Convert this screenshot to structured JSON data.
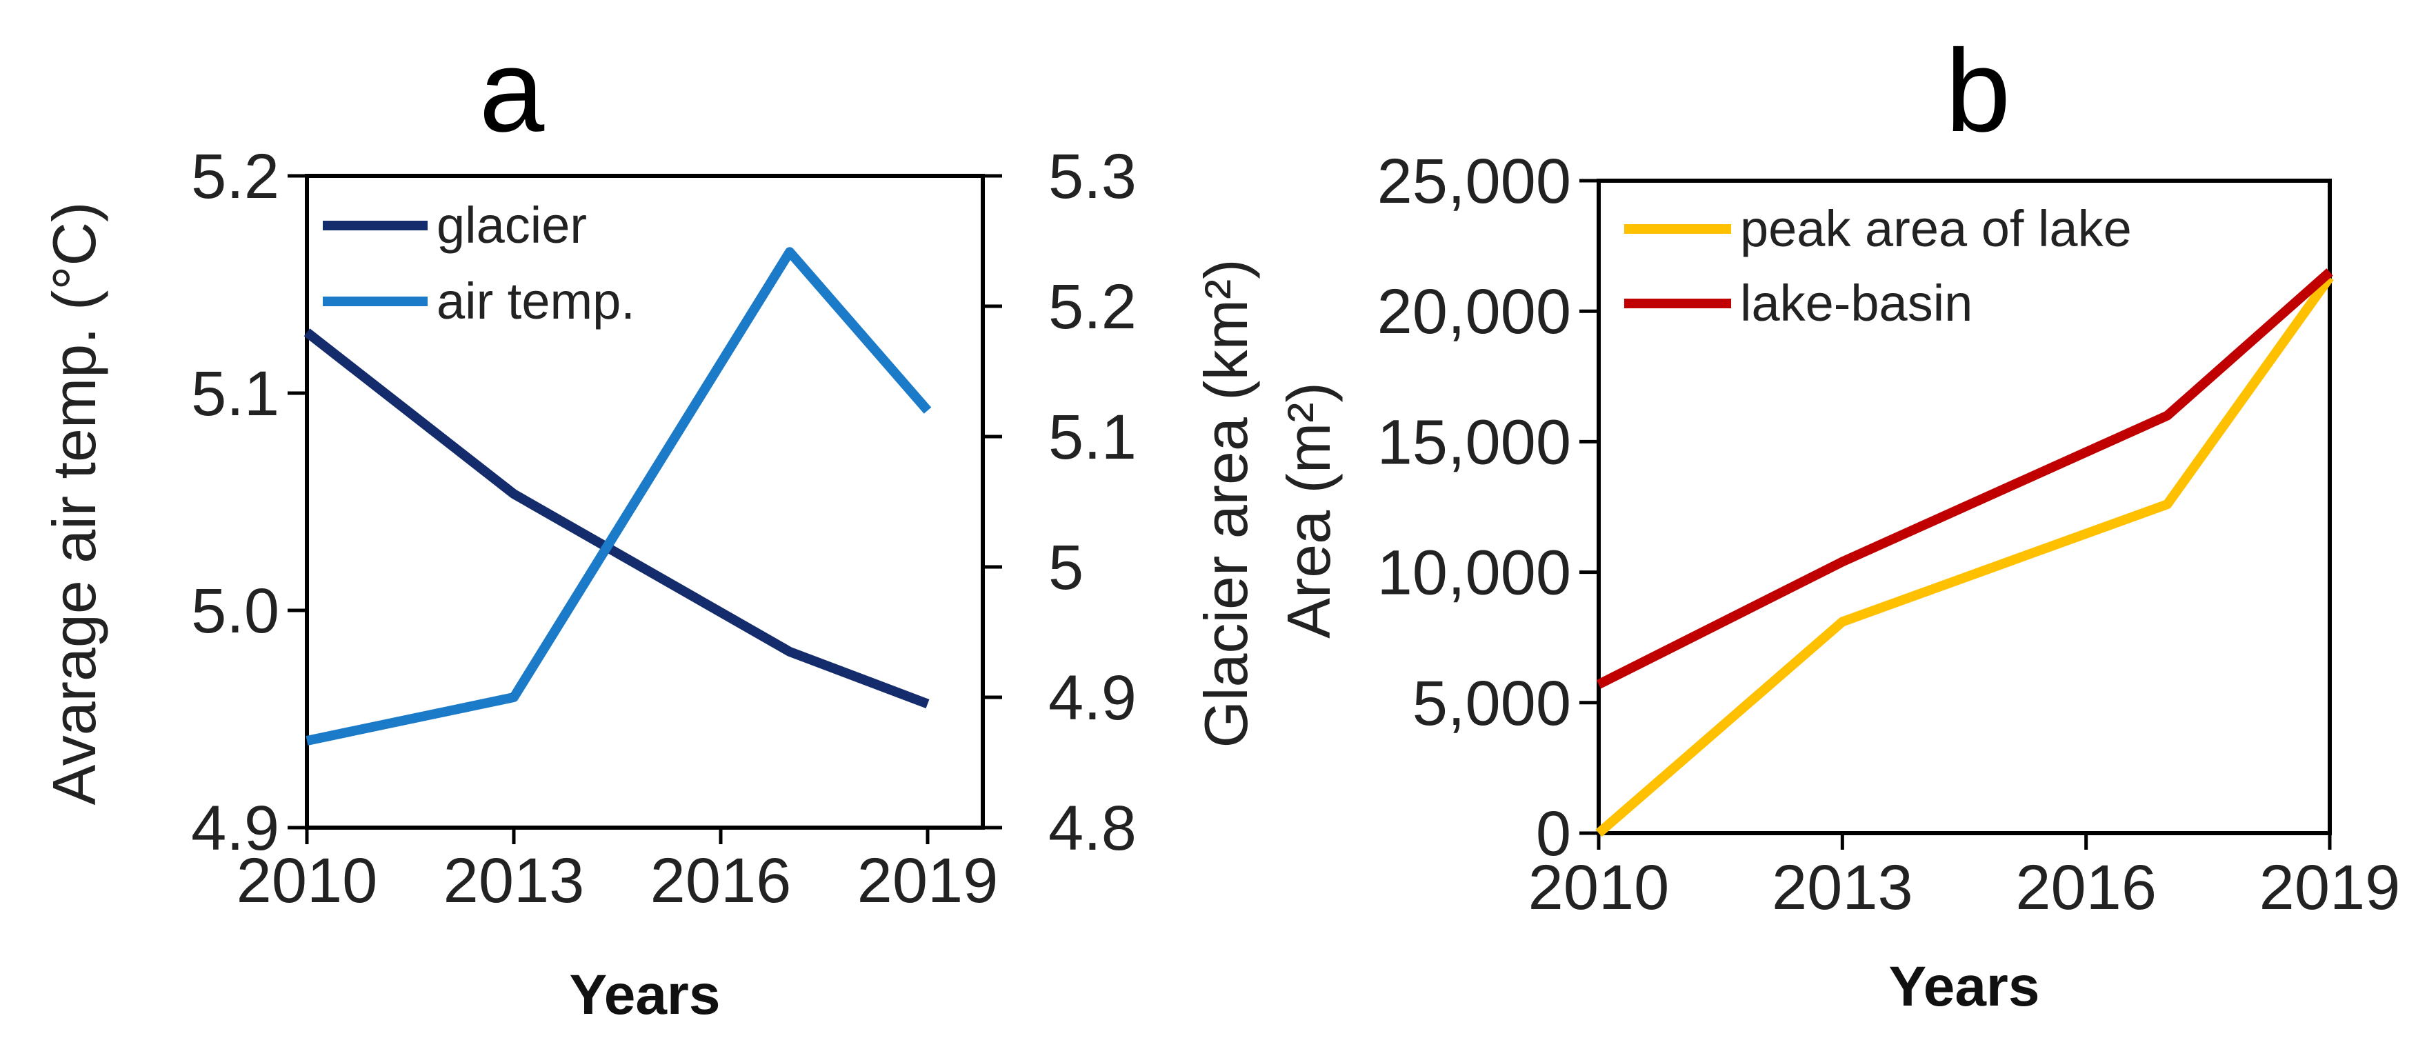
{
  "chart_data": [
    {
      "panel": "a",
      "type": "line",
      "title": "a",
      "xlabel": "Years",
      "ylabel_left": "Avarage air temp. (°C)",
      "ylabel_right": "Glacier area (km²)",
      "x": [
        2010,
        2013,
        2017,
        2019
      ],
      "x_ticks": [
        "2010",
        "2013",
        "2016",
        "2019"
      ],
      "x_tick_values": [
        2010,
        2013,
        2016,
        2019
      ],
      "xlim": [
        2010,
        2019.8
      ],
      "ylim_left": [
        4.9,
        5.2
      ],
      "ylim_right": [
        4.8,
        5.3
      ],
      "y_ticks_left": [
        "4.9",
        "5.0",
        "5.1",
        "5.2"
      ],
      "y_ticks_right": [
        "4.8",
        "4.9",
        "5",
        "5.1",
        "5.2",
        "5.3"
      ],
      "series": [
        {
          "name": "glacier",
          "axis": "right",
          "color": "#142C6B",
          "values": [
            5.18,
            5.056,
            4.935,
            4.895
          ]
        },
        {
          "name": "air temp.",
          "axis": "left",
          "color": "#1B7BC8",
          "values": [
            4.94,
            4.96,
            5.165,
            5.092
          ]
        }
      ],
      "legend_position": "top-left"
    },
    {
      "panel": "b",
      "type": "line",
      "title": "b",
      "xlabel": "Years",
      "ylabel": "Area (m²)",
      "x": [
        2010,
        2013,
        2017,
        2019
      ],
      "x_ticks": [
        "2010",
        "2013",
        "2016",
        "2019"
      ],
      "x_tick_values": [
        2010,
        2013,
        2016,
        2019
      ],
      "xlim": [
        2010,
        2019
      ],
      "ylim": [
        0,
        25000
      ],
      "y_ticks": [
        "0",
        "5,000",
        "10,000",
        "15,000",
        "20,000",
        "25,000"
      ],
      "series": [
        {
          "name": "peak area of lake",
          "color": "#FFC000",
          "values": [
            0,
            8100,
            12600,
            21300
          ]
        },
        {
          "name": "lake-basin",
          "color": "#C00000",
          "values": [
            5700,
            10400,
            16000,
            21500
          ]
        }
      ],
      "legend_position": "top-left"
    }
  ]
}
